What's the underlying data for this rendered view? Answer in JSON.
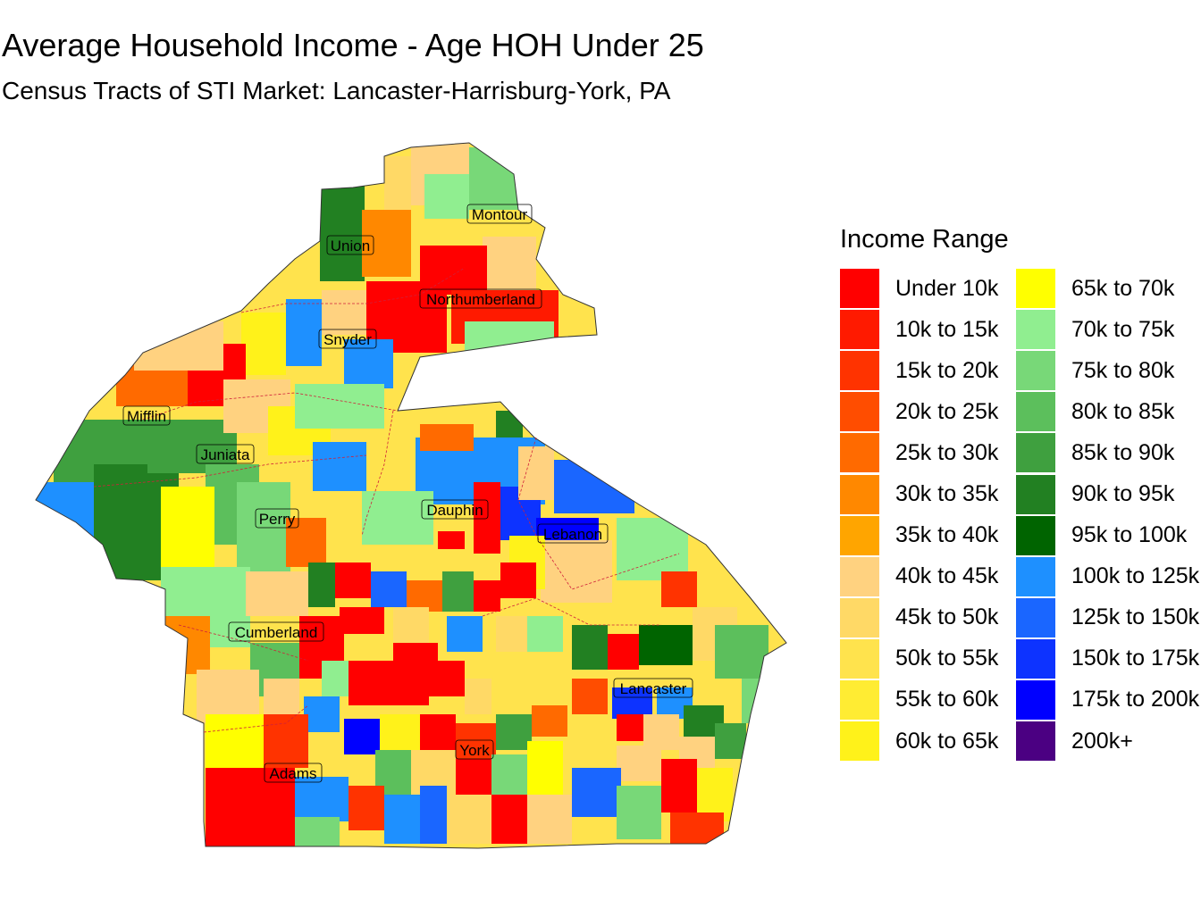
{
  "title": "Average Household Income - Age HOH Under 25",
  "subtitle": "Census Tracts of STI Market: Lancaster-Harrisburg-York, PA",
  "legend": {
    "title": "Income Range",
    "items": [
      {
        "label": "Under 10k",
        "color": "#ff0000"
      },
      {
        "label": "10k to 15k",
        "color": "#ff1a00"
      },
      {
        "label": "15k to 20k",
        "color": "#ff3300"
      },
      {
        "label": "20k to 25k",
        "color": "#ff4d00"
      },
      {
        "label": "25k to 30k",
        "color": "#ff6a00"
      },
      {
        "label": "30k to 35k",
        "color": "#ff8800"
      },
      {
        "label": "35k to 40k",
        "color": "#ffa500"
      },
      {
        "label": "40k to 45k",
        "color": "#ffd280"
      },
      {
        "label": "45k to 50k",
        "color": "#ffd966"
      },
      {
        "label": "50k to 55k",
        "color": "#ffe34d"
      },
      {
        "label": "55k to 60k",
        "color": "#ffec33"
      },
      {
        "label": "60k to 65k",
        "color": "#fff21a"
      },
      {
        "label": "65k to 70k",
        "color": "#ffff00"
      },
      {
        "label": "70k to 75k",
        "color": "#90ee90"
      },
      {
        "label": "75k to 80k",
        "color": "#78d878"
      },
      {
        "label": "80k to 85k",
        "color": "#5cbf5c"
      },
      {
        "label": "85k to 90k",
        "color": "#3fa03f"
      },
      {
        "label": "90k to 95k",
        "color": "#228022"
      },
      {
        "label": "95k to 100k",
        "color": "#006400"
      },
      {
        "label": "100k to 125k",
        "color": "#1e90ff"
      },
      {
        "label": "125k to 150k",
        "color": "#1a66ff"
      },
      {
        "label": "150k to 175k",
        "color": "#0d33ff"
      },
      {
        "label": "175k to 200k",
        "color": "#0000ff"
      },
      {
        "label": "200k+",
        "color": "#4b0082"
      }
    ]
  },
  "counties": [
    {
      "name": "Montour"
    },
    {
      "name": "Union"
    },
    {
      "name": "Northumberland"
    },
    {
      "name": "Snyder"
    },
    {
      "name": "Mifflin"
    },
    {
      "name": "Juniata"
    },
    {
      "name": "Perry"
    },
    {
      "name": "Dauphin"
    },
    {
      "name": "Lebanon"
    },
    {
      "name": "Cumberland"
    },
    {
      "name": "Lancaster"
    },
    {
      "name": "York"
    },
    {
      "name": "Adams"
    }
  ]
}
